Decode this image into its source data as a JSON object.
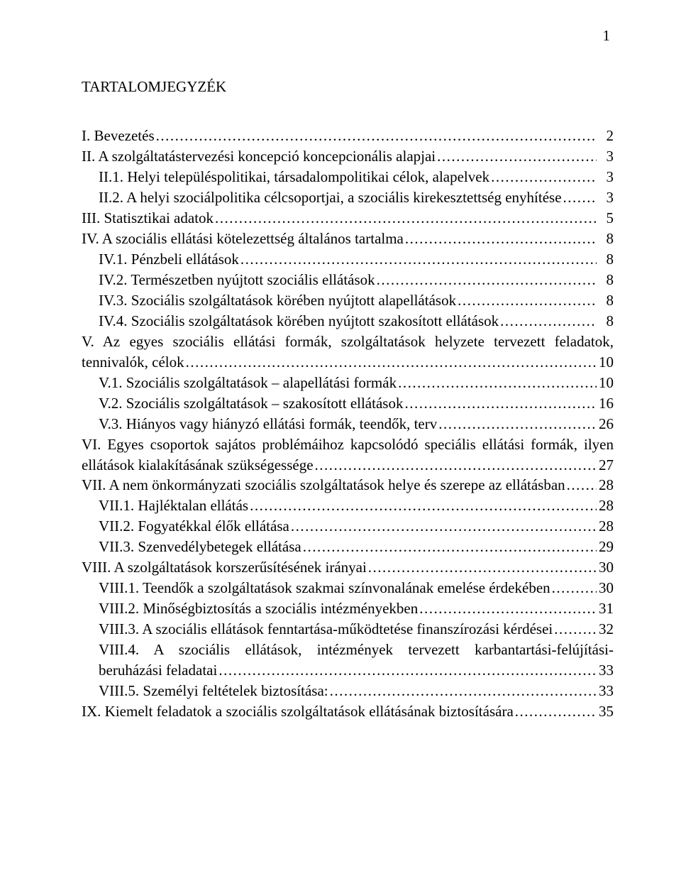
{
  "page_number_text": "1",
  "title": "TARTALOMJEGYZÉK",
  "leader_char": ".",
  "font": {
    "family": "Times New Roman",
    "size_pt": 16,
    "color": "#000000"
  },
  "background_color": "#ffffff",
  "toc": [
    {
      "label": "I. Bevezetés",
      "page": "2",
      "indent": 0,
      "multiline": false
    },
    {
      "label": "II. A szolgáltatástervezési koncepció koncepcionális alapjai",
      "page": "3",
      "indent": 0,
      "multiline": false
    },
    {
      "label": "II.1. Helyi településpolitikai, társadalompolitikai célok, alapelvek",
      "page": "3",
      "indent": 1,
      "multiline": false
    },
    {
      "label": "II.2. A helyi szociálpolitika célcsoportjai, a szociális kirekesztettség enyhítése",
      "page": "3",
      "indent": 1,
      "multiline": false
    },
    {
      "label": "III. Statisztikai adatok",
      "page": "5",
      "indent": 0,
      "multiline": false
    },
    {
      "label": "IV. A szociális ellátási kötelezettség általános tartalma",
      "page": "8",
      "indent": 0,
      "multiline": false
    },
    {
      "label": "IV.1. Pénzbeli ellátások",
      "page": "8",
      "indent": 1,
      "multiline": false
    },
    {
      "label": "IV.2. Természetben nyújtott szociális ellátások",
      "page": "8",
      "indent": 1,
      "multiline": false
    },
    {
      "label": "IV.3. Szociális szolgáltatások körében nyújtott alapellátások",
      "page": "8",
      "indent": 1,
      "multiline": false
    },
    {
      "label": "IV.4. Szociális szolgáltatások körében nyújtott szakosított ellátások",
      "page": "8",
      "indent": 1,
      "multiline": false
    },
    {
      "first_line": "V. Az egyes szociális ellátási formák, szolgáltatások helyzete tervezett feladatok,",
      "cont_line": "tennivalók, célok",
      "page": "10",
      "indent": 0,
      "multiline": true
    },
    {
      "label": "V.1. Szociális szolgáltatások – alapellátási formák",
      "page": "10",
      "indent": 1,
      "multiline": false
    },
    {
      "label": "V.2. Szociális szolgáltatások – szakosított ellátások",
      "page": "16",
      "indent": 1,
      "multiline": false
    },
    {
      "label": "V.3. Hiányos vagy hiányzó ellátási formák, teendők, terv",
      "page": "26",
      "indent": 1,
      "multiline": false
    },
    {
      "first_line": "VI. Egyes csoportok sajátos problémáihoz kapcsolódó speciális ellátási formák, ilyen",
      "cont_line": "ellátások kialakításának szükségessége",
      "page": "27",
      "indent": 0,
      "multiline": true
    },
    {
      "label": "VII. A nem önkormányzati szociális szolgáltatások helye és szerepe az ellátásban",
      "page": "28",
      "indent": 0,
      "multiline": false
    },
    {
      "label": "VII.1. Hajléktalan ellátás",
      "page": "28",
      "indent": 1,
      "multiline": false
    },
    {
      "label": "VII.2. Fogyatékkal élők ellátása",
      "page": "28",
      "indent": 1,
      "multiline": false
    },
    {
      "label": "VII.3. Szenvedélybetegek ellátása",
      "page": "29",
      "indent": 1,
      "multiline": false
    },
    {
      "label": "VIII. A szolgáltatások korszerűsítésének irányai",
      "page": "30",
      "indent": 0,
      "multiline": false
    },
    {
      "label": "VIII.1. Teendők a szolgáltatások szakmai színvonalának emelése érdekében",
      "page": "30",
      "indent": 1,
      "multiline": false
    },
    {
      "label": "VIII.2. Minőségbiztosítás a szociális intézményekben",
      "page": "31",
      "indent": 1,
      "multiline": false
    },
    {
      "label": "VIII.3. A szociális ellátások fenntartása-működtetése finanszírozási kérdései",
      "page": "32",
      "indent": 1,
      "multiline": false
    },
    {
      "first_line": "VIII.4. A szociális ellátások, intézmények tervezett karbantartási-felújítási-",
      "cont_line": "beruházási feladatai",
      "page": "33",
      "indent": 1,
      "multiline": true
    },
    {
      "label": "VIII.5. Személyi feltételek biztosítása:",
      "page": "33",
      "indent": 1,
      "multiline": false
    },
    {
      "label": "IX. Kiemelt feladatok a szociális szolgáltatások ellátásának biztosítására",
      "page": "35",
      "indent": 0,
      "multiline": false
    }
  ]
}
